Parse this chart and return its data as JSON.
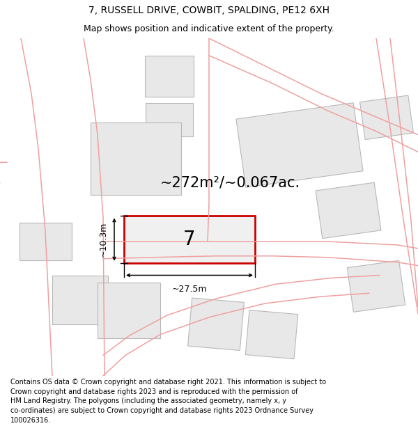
{
  "title": "7, RUSSELL DRIVE, COWBIT, SPALDING, PE12 6XH",
  "subtitle": "Map shows position and indicative extent of the property.",
  "footer": "Contains OS data © Crown copyright and database right 2021. This information is subject to Crown copyright and database rights 2023 and is reproduced with the permission of HM Land Registry. The polygons (including the associated geometry, namely x, y co-ordinates) are subject to Crown copyright and database rights 2023 Ordnance Survey 100026316.",
  "bg_color": "#ffffff",
  "road_color": "#f0a0a0",
  "road_lw": 1.1,
  "building_fill": "#e8e8e8",
  "building_edge": "#b8b8b8",
  "building_lw": 0.8,
  "highlight_fill": "#f0f0f0",
  "highlight_edge": "#cc0000",
  "highlight_lw": 2.0,
  "area_text": "~272m²/~0.067ac.",
  "label_text": "7",
  "dim_width": "~27.5m",
  "dim_height": "~10.3m",
  "title_fontsize": 10,
  "subtitle_fontsize": 9,
  "footer_fontsize": 7.0,
  "area_fontsize": 15,
  "label_fontsize": 20,
  "dim_fontsize": 9
}
